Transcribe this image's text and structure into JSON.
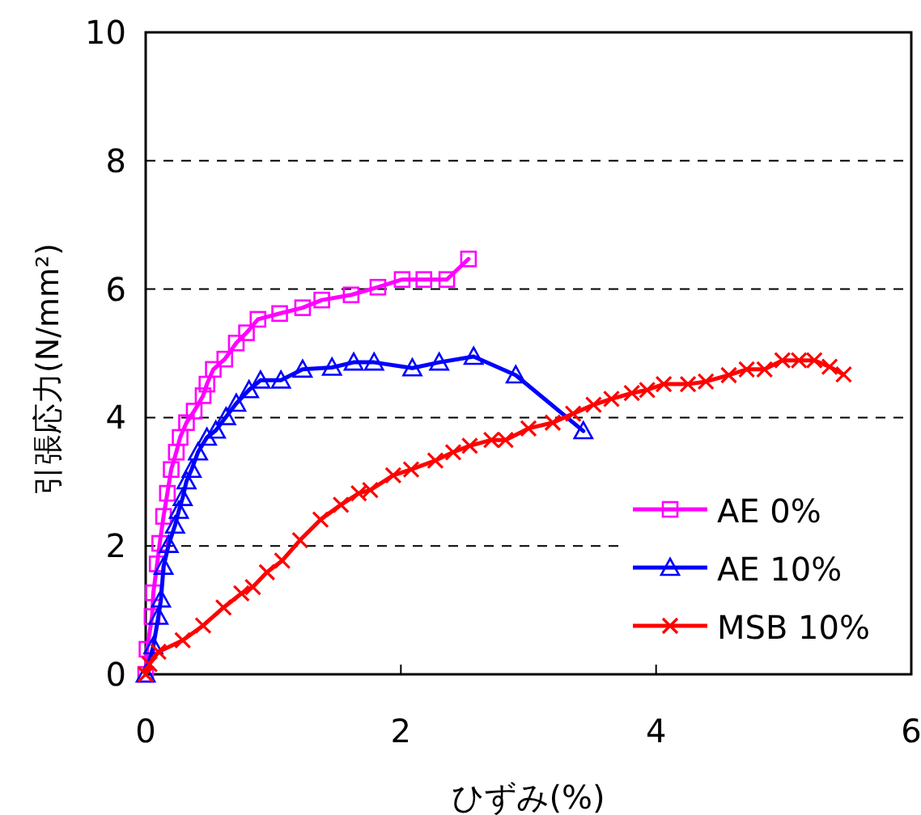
{
  "chart_data": {
    "type": "line",
    "xlabel": "ひずみ(%)",
    "ylabel": "引張応力(N/mm²)",
    "xlim": [
      0,
      6
    ],
    "xticks": [
      0,
      2,
      4,
      6
    ],
    "ylim": [
      0,
      10
    ],
    "yticks": [
      0,
      2,
      4,
      6,
      8,
      10
    ],
    "grid": "y",
    "legend": "bottom right",
    "line_style": "solid",
    "series": [
      {
        "name": "AE 0%",
        "color": "#ff00ff",
        "marker": "square",
        "x": [
          0,
          0.01,
          0.05,
          0.06,
          0.09,
          0.11,
          0.14,
          0.17,
          0.2,
          0.24,
          0.27,
          0.32,
          0.38,
          0.45,
          0.48,
          0.53,
          0.62,
          0.71,
          0.79,
          0.88,
          1.05,
          1.23,
          1.38,
          1.61,
          1.82,
          2.01,
          2.18,
          2.36,
          2.53
        ],
        "values": [
          0,
          0.39,
          0.9,
          1.27,
          1.72,
          2.04,
          2.46,
          2.82,
          3.19,
          3.46,
          3.69,
          3.92,
          4.1,
          4.34,
          4.52,
          4.75,
          4.91,
          5.16,
          5.32,
          5.53,
          5.62,
          5.71,
          5.83,
          5.91,
          6.03,
          6.15,
          6.15,
          6.15,
          6.47
        ]
      },
      {
        "name": "AE 10%",
        "color": "#0000ff",
        "marker": "triangle",
        "x": [
          0,
          0.06,
          0.1,
          0.12,
          0.14,
          0.18,
          0.23,
          0.26,
          0.29,
          0.32,
          0.36,
          0.41,
          0.48,
          0.55,
          0.63,
          0.71,
          0.81,
          0.9,
          1.06,
          1.23,
          1.46,
          1.63,
          1.79,
          2.09,
          2.3,
          2.57,
          2.9,
          3.43
        ],
        "values": [
          0,
          0.44,
          0.9,
          1.17,
          1.68,
          2.02,
          2.32,
          2.55,
          2.75,
          3.01,
          3.19,
          3.46,
          3.69,
          3.8,
          4.01,
          4.22,
          4.43,
          4.58,
          4.58,
          4.75,
          4.78,
          4.86,
          4.86,
          4.77,
          4.86,
          4.95,
          4.66,
          3.79
        ]
      },
      {
        "name": "MSB 10%",
        "color": "#ff0000",
        "marker": "cross",
        "x": [
          0,
          0.03,
          0.1,
          0.29,
          0.45,
          0.61,
          0.75,
          0.84,
          0.95,
          1.07,
          1.21,
          1.37,
          1.53,
          1.67,
          1.76,
          1.94,
          2.08,
          2.27,
          2.41,
          2.54,
          2.71,
          2.82,
          3.0,
          3.19,
          3.35,
          3.51,
          3.65,
          3.81,
          3.93,
          4.06,
          4.25,
          4.39,
          4.57,
          4.71,
          4.85,
          4.99,
          5.12,
          5.24,
          5.36,
          5.47
        ],
        "values": [
          0,
          0.16,
          0.35,
          0.53,
          0.76,
          1.04,
          1.26,
          1.36,
          1.59,
          1.77,
          2.09,
          2.41,
          2.64,
          2.82,
          2.87,
          3.1,
          3.19,
          3.33,
          3.46,
          3.56,
          3.65,
          3.65,
          3.83,
          3.92,
          4.06,
          4.2,
          4.29,
          4.38,
          4.43,
          4.52,
          4.52,
          4.56,
          4.66,
          4.75,
          4.75,
          4.89,
          4.89,
          4.89,
          4.79,
          4.67
        ]
      }
    ]
  }
}
